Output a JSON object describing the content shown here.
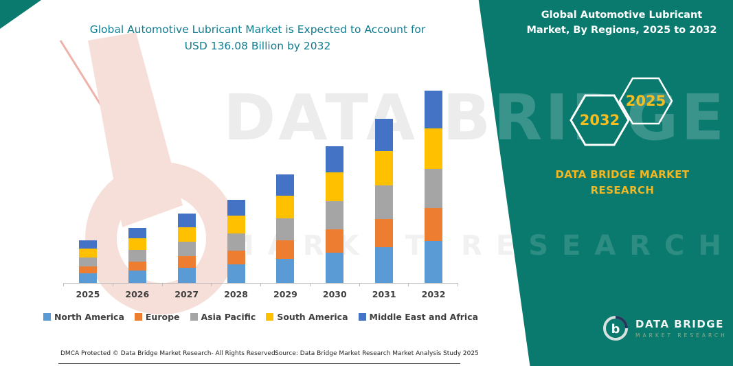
{
  "header": {
    "title_line1": "Global Automotive Lubricant Market is Expected to Account for",
    "title_line2": "USD 136.08 Billion by 2032"
  },
  "banner": {
    "title": "Global Automotive Lubricant Market, By Regions, 2025 to 2032",
    "hexagon_left": "2032",
    "hexagon_right": "2025",
    "brand_text": "DATA BRIDGE MARKET RESEARCH",
    "logo_name": "DATA BRIDGE",
    "logo_tagline": "MARKET RESEARCH",
    "background_color": "#0a7a6e",
    "accent_gold": "#f3b722"
  },
  "watermark": {
    "line1": "DATA BRIDGE",
    "line2": "MARKET RESEARCH"
  },
  "footer": {
    "dmca": "DMCA Protected © Data Bridge Market Research-  All Rights Reserved.",
    "source": "Source: Data Bridge Market Research  Market Analysis Study 2025"
  },
  "chart_data": {
    "type": "bar",
    "stacked": true,
    "title": "Global Automotive Lubricant Market is Expected to Account for USD 136.08 Billion by 2032",
    "unit": "USD Billion",
    "categories": [
      "2025",
      "2026",
      "2027",
      "2028",
      "2029",
      "2030",
      "2031",
      "2032"
    ],
    "series": [
      {
        "name": "North America",
        "color": "#5B9BD5",
        "values": [
          6.6,
          8.6,
          10.8,
          13.0,
          16.9,
          21.3,
          25.5,
          29.9
        ]
      },
      {
        "name": "Europe",
        "color": "#ED7D31",
        "values": [
          5.1,
          6.6,
          8.3,
          10.0,
          13.1,
          16.5,
          19.7,
          23.1
        ]
      },
      {
        "name": "Asia Pacific",
        "color": "#A5A5A5",
        "values": [
          6.2,
          8.0,
          10.0,
          12.1,
          15.8,
          19.9,
          23.8,
          27.9
        ]
      },
      {
        "name": "South America",
        "color": "#FFC000",
        "values": [
          6.3,
          8.2,
          10.3,
          12.4,
          16.2,
          20.4,
          24.4,
          28.6
        ]
      },
      {
        "name": "Middle East and Africa",
        "color": "#4472C4",
        "values": [
          5.8,
          7.6,
          9.6,
          11.5,
          15.0,
          18.9,
          22.6,
          26.58
        ]
      }
    ],
    "totals": [
      30.0,
      39.0,
      49.0,
      59.0,
      77.0,
      97.0,
      116.0,
      136.08
    ],
    "ylim": [
      0,
      140
    ],
    "xlabel": "",
    "ylabel": "",
    "gridlines": false,
    "legend_position": "bottom"
  }
}
